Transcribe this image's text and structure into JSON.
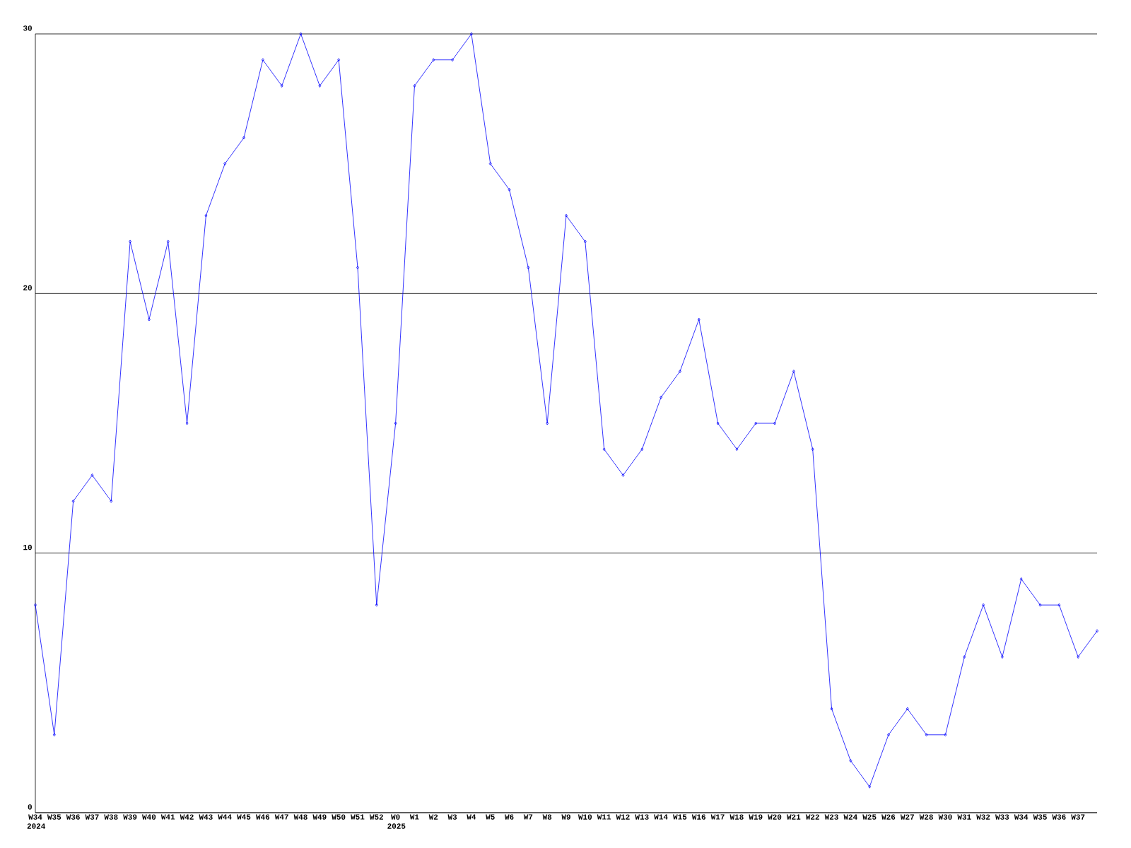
{
  "chart_data": {
    "type": "line",
    "categories": [
      "W34 2024",
      "W35",
      "W36",
      "W37",
      "W38",
      "W39",
      "W40",
      "W41",
      "W42",
      "W43",
      "W44",
      "W45",
      "W46",
      "W47",
      "W48",
      "W49",
      "W50",
      "W51",
      "W52",
      "W0 2025",
      "W1",
      "W2",
      "W3",
      "W4",
      "W5",
      "W6",
      "W7",
      "W8",
      "W9",
      "W10",
      "W11",
      "W12",
      "W13",
      "W14",
      "W15",
      "W16",
      "W17",
      "W18",
      "W19",
      "W20",
      "W21",
      "W22",
      "W23",
      "W24",
      "W25",
      "W26",
      "W27",
      "W28",
      "W30",
      "W31",
      "W32",
      "W33",
      "W34",
      "W35",
      "W36",
      "W37",
      null
    ],
    "values": [
      8,
      3,
      12,
      13,
      12,
      22,
      19,
      22,
      15,
      23,
      25,
      26,
      29,
      28,
      30,
      28,
      29,
      21,
      8,
      15,
      28,
      29,
      29,
      30,
      25,
      24,
      21,
      15,
      23,
      22,
      14,
      13,
      14,
      16,
      17,
      19,
      15,
      14,
      15,
      15,
      17,
      14,
      4,
      2,
      1,
      3,
      4,
      3,
      3,
      6,
      8,
      6,
      9,
      8,
      8,
      6,
      7
    ],
    "color": "#0000ff",
    "marker": "diamond",
    "grid": "y",
    "ylim": [
      0,
      30
    ],
    "yticks": [
      0,
      10,
      20,
      30
    ]
  }
}
